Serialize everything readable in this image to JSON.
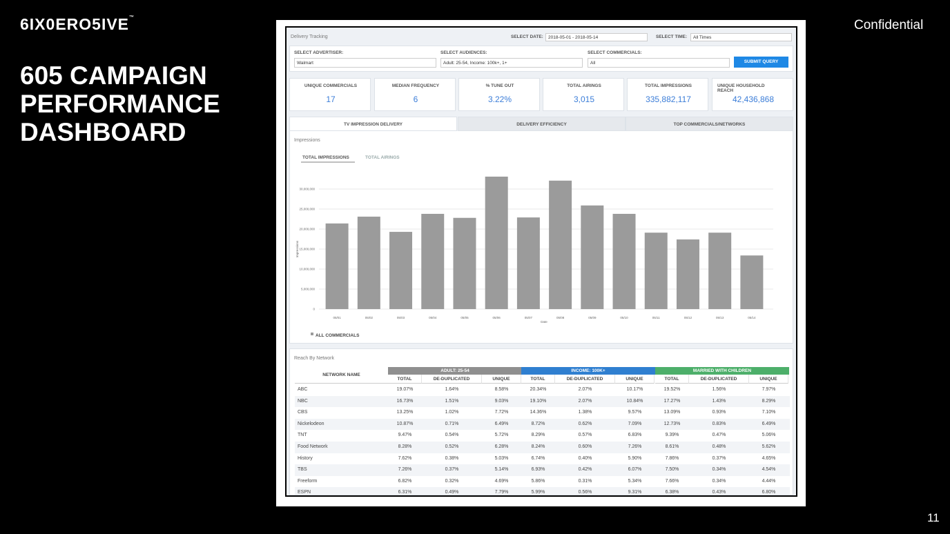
{
  "slide": {
    "logo": "6IX0ERO5IVE",
    "logo_mark": "™",
    "title_lines": [
      "605 CAMPAIGN",
      "PERFORMANCE",
      "DASHBOARD"
    ],
    "confidential": "Confidential",
    "page_number": "11"
  },
  "dashboard": {
    "header": {
      "title": "Delivery Tracking",
      "date_label": "SELECT DATE:",
      "date_value": "2018-05-01 - 2018-05-14",
      "time_label": "SELECT TIME:",
      "time_value": "All Times"
    },
    "filters": [
      {
        "label": "SELECT ADVERTISER:",
        "value": "Walmart"
      },
      {
        "label": "SELECT AUDIENCES:",
        "value": "Adult: 25-54,  Income: 100k+,  1+"
      },
      {
        "label": "SELECT COMMERCIALS:",
        "value": "All"
      }
    ],
    "submit": "SUBMIT QUERY",
    "kpis": [
      {
        "label": "UNIQUE COMMERCIALS",
        "value": "17"
      },
      {
        "label": "MEDIAN FREQUENCY",
        "value": "6"
      },
      {
        "label": "% TUNE OUT",
        "value": "3.22%"
      },
      {
        "label": "TOTAL AIRINGS",
        "value": "3,015"
      },
      {
        "label": "TOTAL IMPRESSIONS",
        "value": "335,882,117"
      },
      {
        "label": "UNIQUE HOUSEHOLD REACH",
        "value": "42,436,868"
      }
    ],
    "tabs": [
      "TV IMPRESSION DELIVERY",
      "DELIVERY EFFICIENCY",
      "TOP COMMERCIALS/NETWORKS"
    ],
    "chart_tabs": [
      "TOTAL IMPRESSIONS",
      "TOTAL AIRINGS"
    ]
  },
  "chart_data": {
    "type": "bar",
    "title": "Impressions",
    "x_label": "Date",
    "y_label": "Impressions",
    "categories": [
      "05/01",
      "05/02",
      "05/03",
      "05/04",
      "05/05",
      "05/06",
      "05/07",
      "05/08",
      "05/09",
      "05/10",
      "05/11",
      "05/12",
      "05/13",
      "05/14"
    ],
    "series": [
      {
        "name": "ALL COMMERCIALS",
        "color": "#9b9b9b",
        "values": [
          21400000,
          23100000,
          19300000,
          23800000,
          22800000,
          33100000,
          22900000,
          32100000,
          25900000,
          23800000,
          19100000,
          17400000,
          19100000,
          13400000
        ]
      }
    ],
    "ylim": [
      0,
      35000000
    ],
    "yticks": [
      0,
      {
        "value": 5000000,
        "label": "5,000,000"
      },
      {
        "value": 10000000,
        "label": "10,000,000"
      },
      {
        "value": 15000000,
        "label": "15,000,000"
      },
      {
        "value": 20000000,
        "label": "20,000,000"
      },
      {
        "value": 25000000,
        "label": "25,000,000"
      },
      {
        "value": 30000000,
        "label": "30,000,000"
      }
    ],
    "grid": true,
    "legend": "bottom-left"
  },
  "table": {
    "title": "Reach By Network",
    "first_header": "NETWORK NAME",
    "groups": [
      {
        "name": "ADULT: 25-54",
        "color": "#8f8f8f"
      },
      {
        "name": "INCOME: 100K+",
        "color": "#2f7fd0"
      },
      {
        "name": "MARRIED WITH CHILDREN",
        "color": "#4daf6a"
      }
    ],
    "columns": [
      "TOTAL",
      "DE-DUPLICATED",
      "UNIQUE"
    ],
    "rows": [
      [
        "ABC",
        "19.07%",
        "1.64%",
        "8.58%",
        "20.34%",
        "2.07%",
        "10.17%",
        "19.52%",
        "1.56%",
        "7.97%"
      ],
      [
        "NBC",
        "16.73%",
        "1.51%",
        "9.03%",
        "19.10%",
        "2.07%",
        "10.84%",
        "17.27%",
        "1.43%",
        "8.29%"
      ],
      [
        "CBS",
        "13.25%",
        "1.02%",
        "7.72%",
        "14.36%",
        "1.38%",
        "9.57%",
        "13.09%",
        "0.93%",
        "7.10%"
      ],
      [
        "Nickelodeon",
        "10.87%",
        "0.71%",
        "6.49%",
        "8.72%",
        "0.62%",
        "7.09%",
        "12.73%",
        "0.83%",
        "6.49%"
      ],
      [
        "TNT",
        "9.47%",
        "0.54%",
        "5.72%",
        "8.29%",
        "0.57%",
        "6.83%",
        "9.39%",
        "0.47%",
        "5.06%"
      ],
      [
        "Food Network",
        "8.28%",
        "0.52%",
        "6.28%",
        "8.24%",
        "0.60%",
        "7.26%",
        "8.61%",
        "0.48%",
        "5.62%"
      ],
      [
        "History",
        "7.62%",
        "0.38%",
        "5.03%",
        "6.74%",
        "0.40%",
        "5.90%",
        "7.86%",
        "0.37%",
        "4.65%"
      ],
      [
        "TBS",
        "7.26%",
        "0.37%",
        "5.14%",
        "6.93%",
        "0.42%",
        "6.07%",
        "7.50%",
        "0.34%",
        "4.54%"
      ],
      [
        "Freeform",
        "6.82%",
        "0.32%",
        "4.69%",
        "5.86%",
        "0.31%",
        "5.34%",
        "7.66%",
        "0.34%",
        "4.44%"
      ],
      [
        "ESPN",
        "6.31%",
        "0.49%",
        "7.79%",
        "5.99%",
        "0.56%",
        "9.31%",
        "6.38%",
        "0.43%",
        "6.80%"
      ]
    ]
  }
}
